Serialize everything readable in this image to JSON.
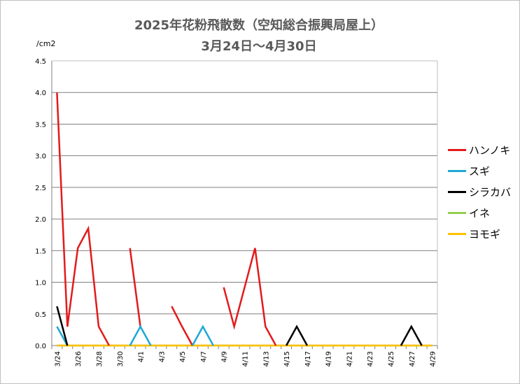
{
  "title": {
    "line1": "2025年花粉飛散数（空知総合振興局屋上）",
    "line2": "3月24日～4月30日"
  },
  "unit": "/cm2",
  "legend": [
    {
      "label": "ハンノキ",
      "color": "#e31a1c"
    },
    {
      "label": "スギ",
      "color": "#1fa8d6"
    },
    {
      "label": "シラカバ",
      "color": "#000000"
    },
    {
      "label": "イネ",
      "color": "#92d050"
    },
    {
      "label": "ヨモギ",
      "color": "#ffc000"
    }
  ],
  "chart_data": {
    "type": "line",
    "title": "2025年花粉飛散数（空知総合振興局屋上） 3月24日～4月30日",
    "ylabel": "/cm2",
    "ylim": [
      0,
      4.5
    ],
    "yticks": [
      "0.0",
      "0.5",
      "1.0",
      "1.5",
      "2.0",
      "2.5",
      "3.0",
      "3.5",
      "4.0",
      "4.5"
    ],
    "grid": true,
    "legend_position": "right",
    "categories": [
      "3/24",
      "3/25",
      "3/26",
      "3/27",
      "3/28",
      "3/29",
      "3/30",
      "3/31",
      "4/1",
      "4/2",
      "4/3",
      "4/4",
      "4/5",
      "4/6",
      "4/7",
      "4/8",
      "4/9",
      "4/10",
      "4/11",
      "4/12",
      "4/13",
      "4/14",
      "4/15",
      "4/16",
      "4/17",
      "4/18",
      "4/19",
      "4/20",
      "4/21",
      "4/22",
      "4/23",
      "4/24",
      "4/25",
      "4/26",
      "4/27",
      "4/28",
      "4/29"
    ],
    "xtick_labels": [
      "3/24",
      "3/26",
      "3/28",
      "3/30",
      "4/1",
      "4/3",
      "4/5",
      "4/7",
      "4/9",
      "4/11",
      "4/13",
      "4/15",
      "4/17",
      "4/19",
      "4/21",
      "4/23",
      "4/25",
      "4/27",
      "4/29"
    ],
    "series": [
      {
        "name": "ハンノキ",
        "color": "#e31a1c",
        "values": [
          4.0,
          0.3,
          1.54,
          1.85,
          0.3,
          0,
          null,
          1.54,
          0.3,
          null,
          null,
          0.62,
          0.3,
          0,
          null,
          null,
          0.92,
          0.3,
          0.92,
          1.54,
          0.3,
          0,
          null,
          null,
          null,
          null,
          null,
          null,
          null,
          null,
          null,
          null,
          null,
          null,
          null,
          null,
          null
        ]
      },
      {
        "name": "スギ",
        "color": "#1fa8d6",
        "values": [
          0.3,
          0,
          null,
          null,
          null,
          null,
          null,
          0,
          0.3,
          0,
          null,
          null,
          null,
          0,
          0.3,
          0,
          null,
          null,
          null,
          null,
          null,
          null,
          null,
          null,
          null,
          null,
          null,
          null,
          null,
          null,
          null,
          null,
          null,
          null,
          null,
          null,
          null
        ]
      },
      {
        "name": "シラカバ",
        "color": "#000000",
        "values": [
          0.62,
          0,
          null,
          null,
          null,
          null,
          null,
          null,
          null,
          null,
          null,
          null,
          null,
          null,
          null,
          null,
          null,
          null,
          null,
          null,
          null,
          null,
          0,
          0.3,
          0,
          null,
          null,
          null,
          null,
          null,
          null,
          null,
          null,
          0,
          0.3,
          0,
          null
        ]
      },
      {
        "name": "イネ",
        "color": "#92d050",
        "values": [
          0,
          0,
          0,
          0,
          0,
          0,
          0,
          0,
          0,
          0,
          0,
          0,
          0,
          0,
          0,
          0,
          0,
          0,
          0,
          0,
          0,
          0,
          0,
          0,
          0,
          0,
          0,
          0,
          0,
          0,
          0,
          0,
          0,
          0,
          0,
          0,
          0
        ]
      },
      {
        "name": "ヨモギ",
        "color": "#ffc000",
        "values": [
          0,
          0,
          0,
          0,
          0,
          0,
          0,
          0,
          0,
          0,
          0,
          0,
          0,
          0,
          0,
          0,
          0,
          0,
          0,
          0,
          0,
          0,
          0,
          0,
          0,
          0,
          0,
          0,
          0,
          0,
          0,
          0,
          0,
          0,
          0,
          0,
          0
        ]
      }
    ]
  }
}
